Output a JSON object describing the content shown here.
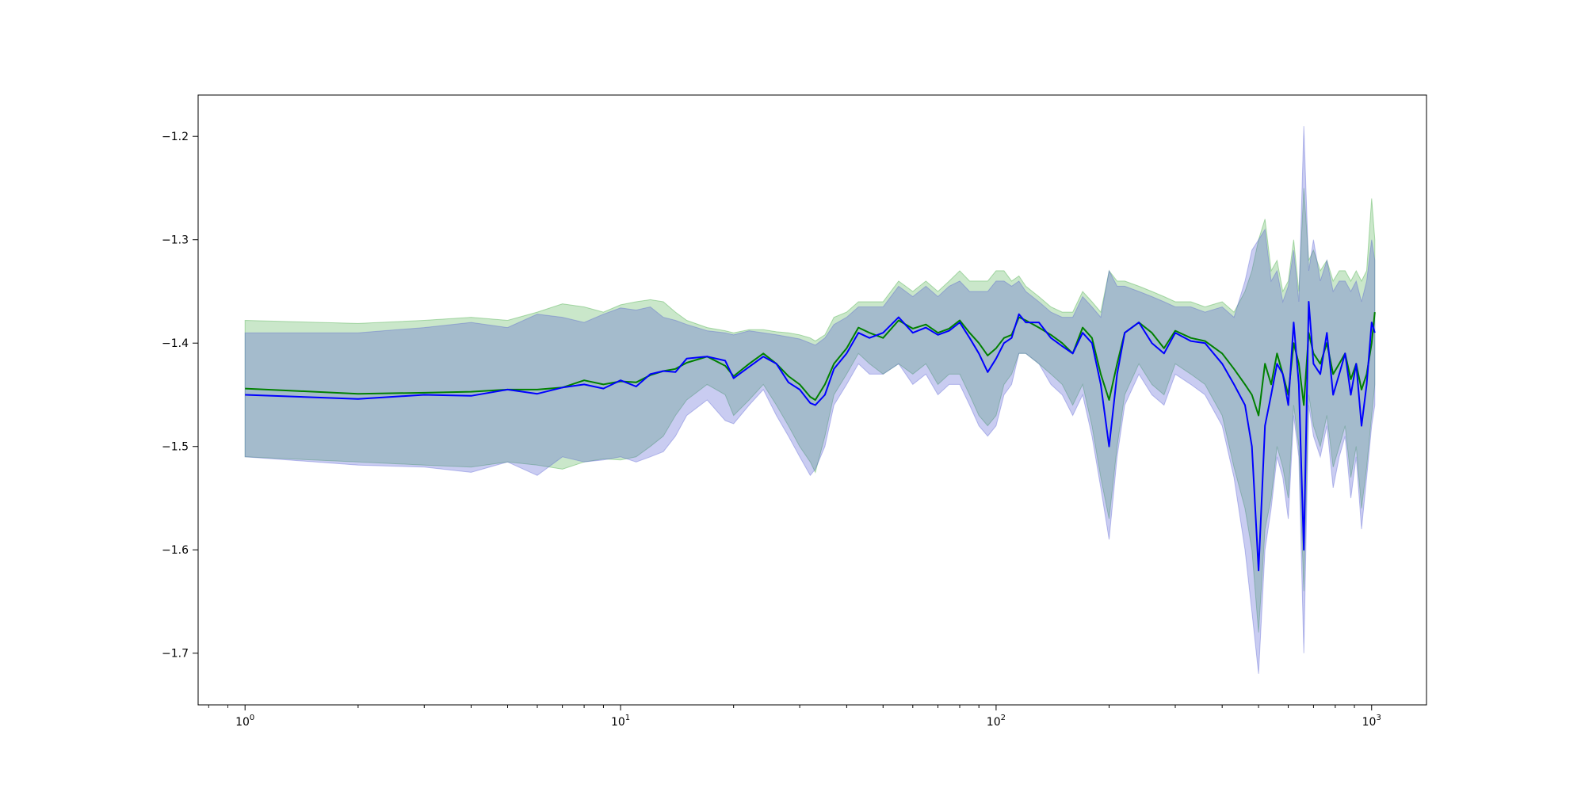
{
  "chart_data": {
    "type": "line",
    "title": "",
    "xlabel": "",
    "ylabel": "",
    "xscale": "log",
    "xlim": [
      0.75,
      1400
    ],
    "ylim": [
      -1.75,
      -1.16
    ],
    "grid": false,
    "legend": "none",
    "x_ticks": [
      {
        "value": 1,
        "base": "10",
        "exp": "0"
      },
      {
        "value": 10,
        "base": "10",
        "exp": "1"
      },
      {
        "value": 100,
        "base": "10",
        "exp": "2"
      },
      {
        "value": 1000,
        "base": "10",
        "exp": "3"
      }
    ],
    "y_ticks": [
      {
        "value": -1.2,
        "label": "−1.2"
      },
      {
        "value": -1.3,
        "label": "−1.3"
      },
      {
        "value": -1.4,
        "label": "−1.4"
      },
      {
        "value": -1.5,
        "label": "−1.5"
      },
      {
        "value": -1.6,
        "label": "−1.6"
      },
      {
        "value": -1.7,
        "label": "−1.7"
      }
    ],
    "series": [
      {
        "color": "#008000",
        "band_color": "#2ca02c",
        "band_opacity": 0.25,
        "x": [
          1,
          2,
          3,
          4,
          5,
          6,
          7,
          8,
          9,
          10,
          11,
          12,
          13,
          14,
          15,
          17,
          19,
          20,
          22,
          24,
          26,
          28,
          30,
          32,
          33,
          35,
          37,
          40,
          43,
          46,
          50,
          55,
          60,
          65,
          70,
          75,
          80,
          85,
          90,
          95,
          100,
          105,
          110,
          115,
          120,
          130,
          140,
          150,
          160,
          170,
          180,
          190,
          200,
          210,
          220,
          240,
          260,
          280,
          300,
          330,
          360,
          400,
          430,
          460,
          480,
          500,
          520,
          540,
          560,
          580,
          600,
          620,
          640,
          660,
          680,
          700,
          730,
          760,
          790,
          820,
          850,
          880,
          910,
          940,
          970,
          1000,
          1020
        ],
        "y": [
          -1.444,
          -1.449,
          -1.448,
          -1.447,
          -1.445,
          -1.445,
          -1.443,
          -1.436,
          -1.44,
          -1.437,
          -1.438,
          -1.431,
          -1.427,
          -1.425,
          -1.419,
          -1.413,
          -1.422,
          -1.432,
          -1.42,
          -1.41,
          -1.42,
          -1.432,
          -1.44,
          -1.452,
          -1.455,
          -1.44,
          -1.42,
          -1.405,
          -1.385,
          -1.39,
          -1.395,
          -1.378,
          -1.386,
          -1.382,
          -1.39,
          -1.386,
          -1.378,
          -1.39,
          -1.4,
          -1.412,
          -1.405,
          -1.395,
          -1.392,
          -1.375,
          -1.378,
          -1.385,
          -1.392,
          -1.4,
          -1.41,
          -1.385,
          -1.395,
          -1.43,
          -1.455,
          -1.42,
          -1.39,
          -1.38,
          -1.39,
          -1.405,
          -1.388,
          -1.395,
          -1.398,
          -1.41,
          -1.425,
          -1.44,
          -1.45,
          -1.47,
          -1.42,
          -1.44,
          -1.41,
          -1.43,
          -1.45,
          -1.4,
          -1.42,
          -1.46,
          -1.39,
          -1.41,
          -1.42,
          -1.4,
          -1.43,
          -1.42,
          -1.41,
          -1.435,
          -1.42,
          -1.445,
          -1.43,
          -1.4,
          -1.37
        ],
        "lower": [
          -1.51,
          -1.515,
          -1.518,
          -1.52,
          -1.515,
          -1.518,
          -1.522,
          -1.515,
          -1.512,
          -1.513,
          -1.51,
          -1.5,
          -1.49,
          -1.47,
          -1.455,
          -1.44,
          -1.45,
          -1.47,
          -1.455,
          -1.44,
          -1.46,
          -1.48,
          -1.5,
          -1.515,
          -1.525,
          -1.49,
          -1.45,
          -1.43,
          -1.41,
          -1.42,
          -1.43,
          -1.42,
          -1.43,
          -1.42,
          -1.44,
          -1.43,
          -1.43,
          -1.45,
          -1.47,
          -1.48,
          -1.47,
          -1.44,
          -1.43,
          -1.41,
          -1.41,
          -1.42,
          -1.43,
          -1.44,
          -1.46,
          -1.44,
          -1.48,
          -1.53,
          -1.57,
          -1.5,
          -1.45,
          -1.42,
          -1.44,
          -1.45,
          -1.42,
          -1.43,
          -1.44,
          -1.47,
          -1.52,
          -1.56,
          -1.6,
          -1.68,
          -1.58,
          -1.55,
          -1.5,
          -1.52,
          -1.55,
          -1.46,
          -1.5,
          -1.64,
          -1.45,
          -1.48,
          -1.5,
          -1.47,
          -1.52,
          -1.5,
          -1.48,
          -1.53,
          -1.5,
          -1.56,
          -1.52,
          -1.47,
          -1.44
        ],
        "upper": [
          -1.378,
          -1.381,
          -1.378,
          -1.375,
          -1.378,
          -1.37,
          -1.362,
          -1.365,
          -1.37,
          -1.363,
          -1.36,
          -1.358,
          -1.36,
          -1.37,
          -1.378,
          -1.385,
          -1.388,
          -1.39,
          -1.387,
          -1.387,
          -1.389,
          -1.39,
          -1.392,
          -1.395,
          -1.398,
          -1.392,
          -1.375,
          -1.37,
          -1.36,
          -1.36,
          -1.36,
          -1.34,
          -1.35,
          -1.34,
          -1.35,
          -1.34,
          -1.33,
          -1.34,
          -1.34,
          -1.34,
          -1.33,
          -1.33,
          -1.34,
          -1.335,
          -1.345,
          -1.355,
          -1.365,
          -1.37,
          -1.37,
          -1.35,
          -1.36,
          -1.37,
          -1.33,
          -1.34,
          -1.34,
          -1.345,
          -1.35,
          -1.355,
          -1.36,
          -1.36,
          -1.365,
          -1.36,
          -1.37,
          -1.35,
          -1.33,
          -1.3,
          -1.28,
          -1.33,
          -1.32,
          -1.35,
          -1.34,
          -1.3,
          -1.35,
          -1.25,
          -1.32,
          -1.31,
          -1.33,
          -1.32,
          -1.34,
          -1.33,
          -1.33,
          -1.34,
          -1.33,
          -1.34,
          -1.33,
          -1.26,
          -1.3
        ]
      },
      {
        "color": "#0000ff",
        "band_color": "#4c56d0",
        "band_opacity": 0.3,
        "x": [
          1,
          2,
          3,
          4,
          5,
          6,
          7,
          8,
          9,
          10,
          11,
          12,
          13,
          14,
          15,
          17,
          19,
          20,
          22,
          24,
          26,
          28,
          30,
          32,
          33,
          35,
          37,
          40,
          43,
          46,
          50,
          55,
          60,
          65,
          70,
          75,
          80,
          85,
          90,
          95,
          100,
          105,
          110,
          115,
          120,
          130,
          140,
          150,
          160,
          170,
          180,
          190,
          200,
          210,
          220,
          240,
          260,
          280,
          300,
          330,
          360,
          400,
          430,
          460,
          480,
          500,
          520,
          540,
          560,
          580,
          600,
          620,
          640,
          660,
          680,
          700,
          730,
          760,
          790,
          820,
          850,
          880,
          910,
          940,
          970,
          1000,
          1020
        ],
        "y": [
          -1.45,
          -1.454,
          -1.45,
          -1.451,
          -1.445,
          -1.449,
          -1.443,
          -1.44,
          -1.444,
          -1.436,
          -1.442,
          -1.43,
          -1.427,
          -1.428,
          -1.415,
          -1.413,
          -1.417,
          -1.434,
          -1.423,
          -1.413,
          -1.42,
          -1.438,
          -1.445,
          -1.458,
          -1.46,
          -1.45,
          -1.425,
          -1.41,
          -1.39,
          -1.395,
          -1.39,
          -1.375,
          -1.39,
          -1.385,
          -1.392,
          -1.388,
          -1.38,
          -1.395,
          -1.41,
          -1.428,
          -1.415,
          -1.4,
          -1.395,
          -1.372,
          -1.38,
          -1.38,
          -1.395,
          -1.403,
          -1.41,
          -1.39,
          -1.4,
          -1.44,
          -1.5,
          -1.43,
          -1.39,
          -1.38,
          -1.4,
          -1.41,
          -1.39,
          -1.398,
          -1.4,
          -1.42,
          -1.44,
          -1.46,
          -1.5,
          -1.62,
          -1.48,
          -1.45,
          -1.42,
          -1.43,
          -1.46,
          -1.38,
          -1.44,
          -1.6,
          -1.36,
          -1.42,
          -1.43,
          -1.39,
          -1.45,
          -1.43,
          -1.41,
          -1.45,
          -1.42,
          -1.48,
          -1.44,
          -1.38,
          -1.39
        ],
        "lower": [
          -1.51,
          -1.518,
          -1.52,
          -1.525,
          -1.515,
          -1.528,
          -1.51,
          -1.515,
          -1.513,
          -1.51,
          -1.515,
          -1.51,
          -1.505,
          -1.49,
          -1.47,
          -1.455,
          -1.475,
          -1.478,
          -1.46,
          -1.445,
          -1.47,
          -1.49,
          -1.51,
          -1.528,
          -1.522,
          -1.5,
          -1.46,
          -1.44,
          -1.42,
          -1.43,
          -1.43,
          -1.42,
          -1.44,
          -1.43,
          -1.45,
          -1.44,
          -1.44,
          -1.46,
          -1.48,
          -1.49,
          -1.48,
          -1.45,
          -1.44,
          -1.41,
          -1.41,
          -1.42,
          -1.44,
          -1.45,
          -1.47,
          -1.45,
          -1.49,
          -1.54,
          -1.59,
          -1.51,
          -1.46,
          -1.43,
          -1.45,
          -1.46,
          -1.43,
          -1.44,
          -1.45,
          -1.48,
          -1.53,
          -1.6,
          -1.66,
          -1.72,
          -1.6,
          -1.56,
          -1.51,
          -1.53,
          -1.57,
          -1.47,
          -1.51,
          -1.7,
          -1.46,
          -1.49,
          -1.51,
          -1.48,
          -1.54,
          -1.51,
          -1.49,
          -1.55,
          -1.51,
          -1.58,
          -1.53,
          -1.48,
          -1.46
        ],
        "upper": [
          -1.39,
          -1.39,
          -1.385,
          -1.38,
          -1.385,
          -1.372,
          -1.375,
          -1.38,
          -1.372,
          -1.366,
          -1.368,
          -1.365,
          -1.375,
          -1.378,
          -1.382,
          -1.388,
          -1.39,
          -1.392,
          -1.388,
          -1.39,
          -1.392,
          -1.394,
          -1.396,
          -1.4,
          -1.402,
          -1.395,
          -1.382,
          -1.375,
          -1.365,
          -1.365,
          -1.365,
          -1.345,
          -1.355,
          -1.345,
          -1.355,
          -1.345,
          -1.34,
          -1.35,
          -1.35,
          -1.35,
          -1.34,
          -1.34,
          -1.345,
          -1.34,
          -1.35,
          -1.36,
          -1.37,
          -1.375,
          -1.375,
          -1.355,
          -1.365,
          -1.375,
          -1.33,
          -1.345,
          -1.345,
          -1.35,
          -1.355,
          -1.36,
          -1.365,
          -1.365,
          -1.37,
          -1.365,
          -1.375,
          -1.34,
          -1.31,
          -1.3,
          -1.29,
          -1.34,
          -1.33,
          -1.36,
          -1.345,
          -1.31,
          -1.36,
          -1.19,
          -1.33,
          -1.3,
          -1.34,
          -1.32,
          -1.35,
          -1.34,
          -1.34,
          -1.35,
          -1.34,
          -1.36,
          -1.34,
          -1.3,
          -1.32
        ]
      }
    ]
  }
}
